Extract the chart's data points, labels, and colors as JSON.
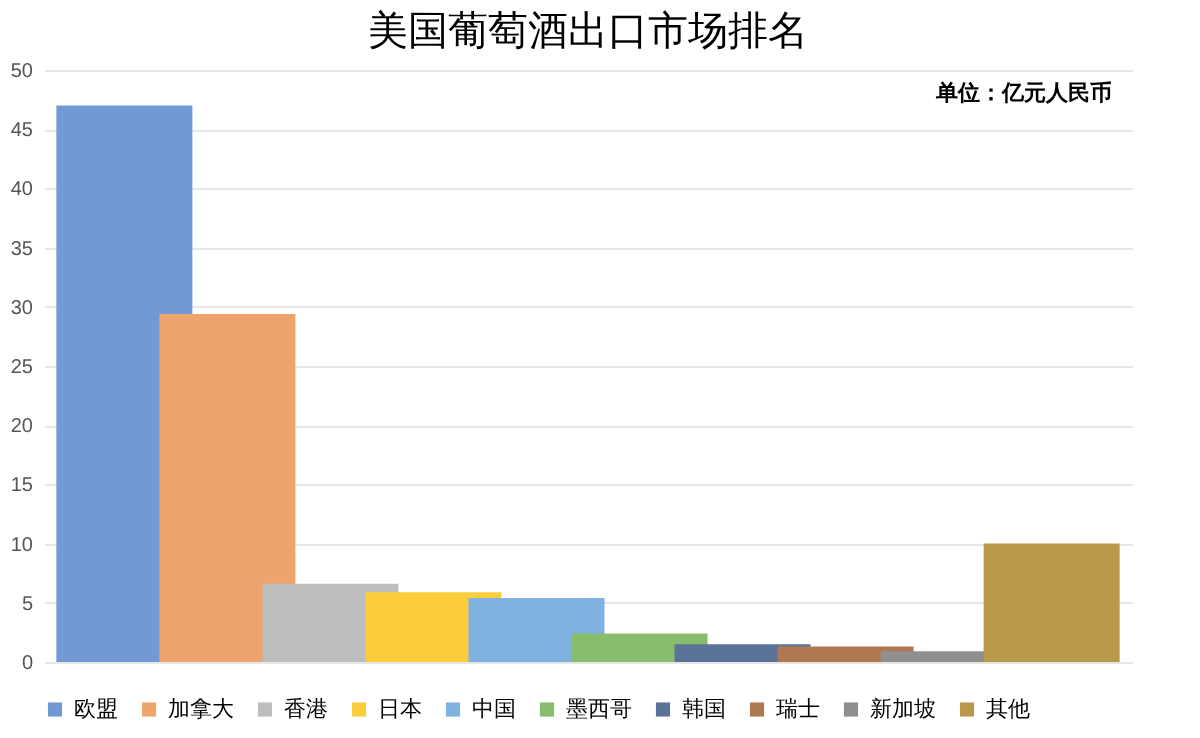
{
  "chart_data": {
    "type": "bar",
    "title": "美国葡萄酒出口市场排名",
    "annotations": [
      "单位：亿元人民币"
    ],
    "categories": [
      null
    ],
    "series": [
      {
        "name": "欧盟",
        "color": "#7199d4",
        "values": [
          47
        ]
      },
      {
        "name": "加拿大",
        "color": "#eea46d",
        "values": [
          29.4
        ]
      },
      {
        "name": "香港",
        "color": "#bdbdbd",
        "values": [
          6.6
        ]
      },
      {
        "name": "日本",
        "color": "#fbcc3c",
        "values": [
          5.9
        ]
      },
      {
        "name": "中国",
        "color": "#7fb2e0",
        "values": [
          5.4
        ]
      },
      {
        "name": "墨西哥",
        "color": "#88bd6e",
        "values": [
          2.4
        ]
      },
      {
        "name": "韩国",
        "color": "#5b7299",
        "values": [
          1.5
        ]
      },
      {
        "name": "瑞士",
        "color": "#b07850",
        "values": [
          1.3
        ]
      },
      {
        "name": "新加坡",
        "color": "#8f8f8f",
        "values": [
          0.9
        ]
      },
      {
        "name": "其他",
        "color": "#b8994a",
        "values": [
          10
        ]
      }
    ],
    "ylim": [
      0,
      50
    ],
    "yticks": [
      0,
      5,
      10,
      15,
      20,
      25,
      30,
      35,
      40,
      45,
      50
    ],
    "grid": "y",
    "legend": "bottom",
    "tick_labels": "y"
  }
}
